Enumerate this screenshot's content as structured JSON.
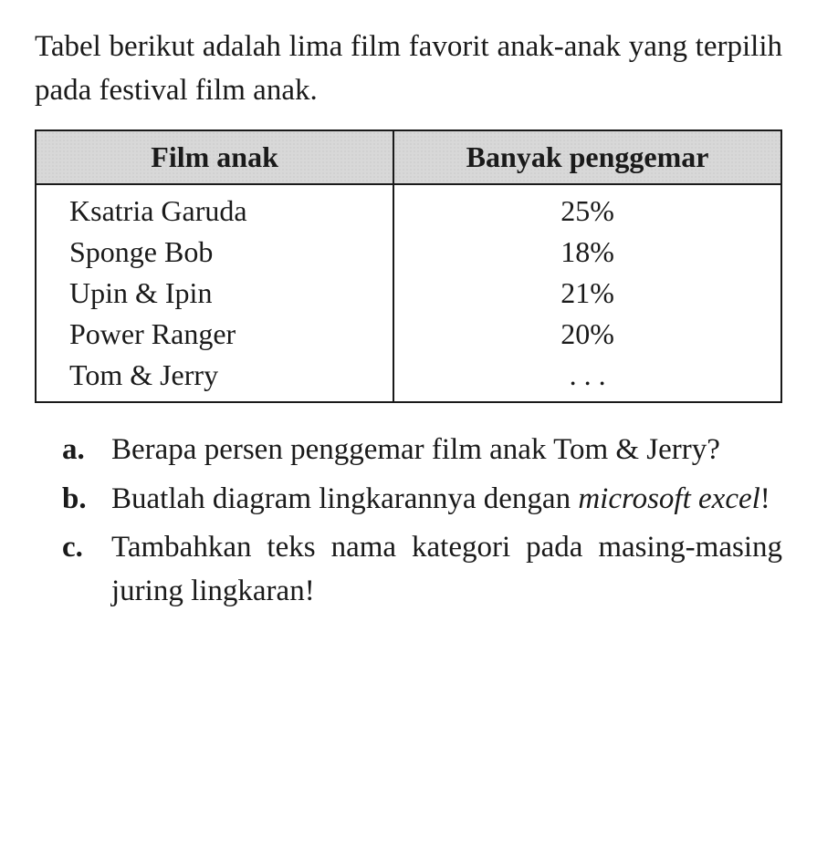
{
  "intro": "Tabel berikut adalah lima film favorit anak-anak yang terpilih pada festival film anak.",
  "table": {
    "columns": [
      "Film anak",
      "Banyak penggemar"
    ],
    "header_bg_color": "#d8d8d8",
    "header_dot_color": "#bcbcbc",
    "border_color": "#1a1a1a",
    "font_size_pt": 24,
    "col_widths_pct": [
      48,
      52
    ],
    "rows": [
      {
        "film": "Ksatria Garuda",
        "fans": "25%"
      },
      {
        "film": "Sponge Bob",
        "fans": "18%"
      },
      {
        "film": "Upin & Ipin",
        "fans": "21%"
      },
      {
        "film": "Power Ranger",
        "fans": "20%"
      },
      {
        "film": "Tom & Jerry",
        "fans": ". . ."
      }
    ]
  },
  "questions": [
    {
      "label": "a.",
      "text_before": "Berapa persen penggemar film anak Tom & Jerry?",
      "italic": "",
      "text_after": ""
    },
    {
      "label": "b.",
      "text_before": "Buatlah diagram lingkarannya dengan ",
      "italic": "microsoft excel",
      "text_after": "!"
    },
    {
      "label": "c.",
      "text_before": "Tambahkan teks nama kategori pada masing-masing juring lingkaran!",
      "italic": "",
      "text_after": ""
    }
  ],
  "colors": {
    "background": "#ffffff",
    "text": "#1a1a1a"
  },
  "typography": {
    "font_family": "Times New Roman",
    "body_font_size_pt": 24,
    "line_height": 1.45
  }
}
